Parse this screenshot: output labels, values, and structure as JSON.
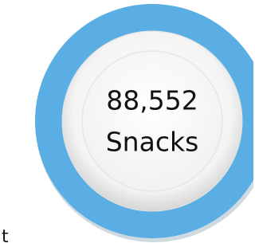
{
  "plate": {
    "count": "88,552",
    "label": "Snacks"
  },
  "fragment": "t"
}
